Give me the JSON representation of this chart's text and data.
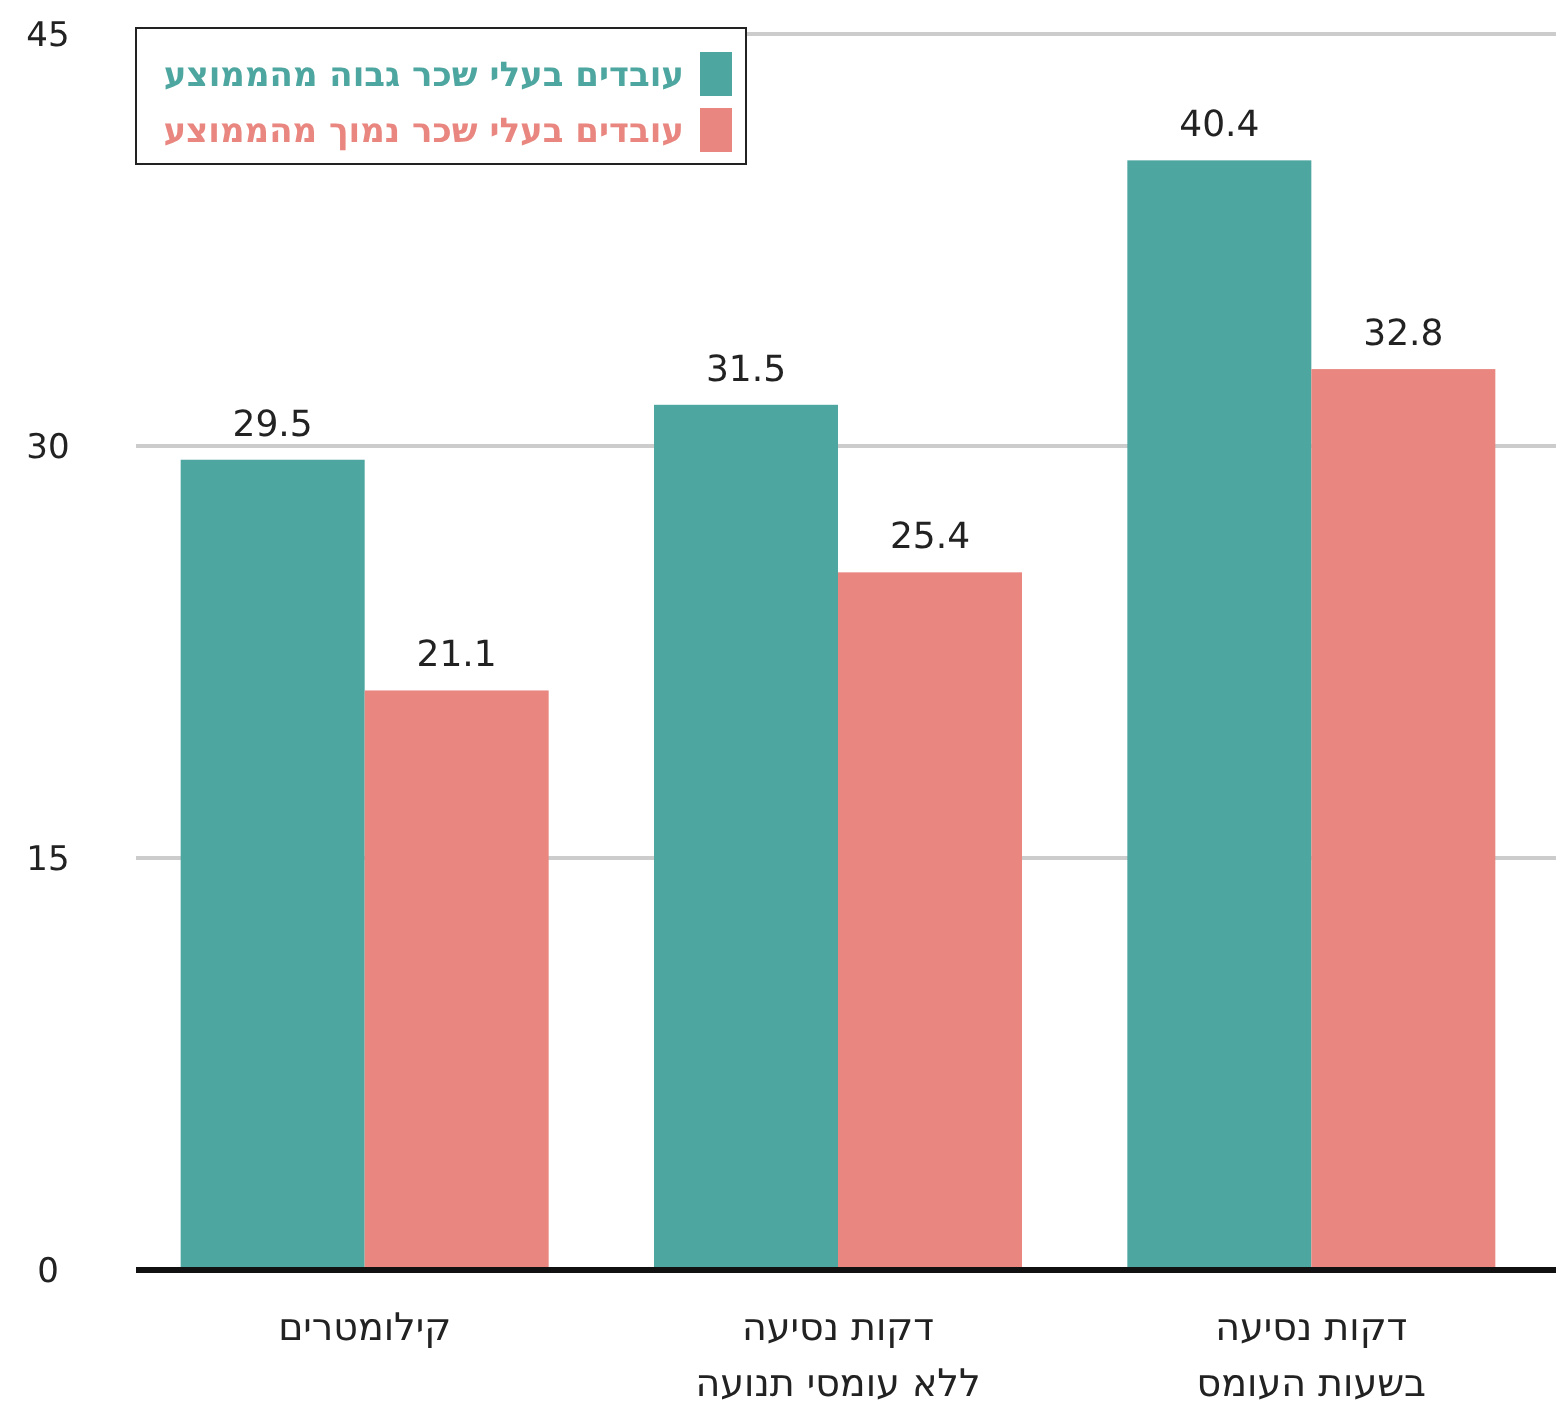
{
  "chart_data": {
    "type": "bar",
    "categories": [
      "קילומטרים",
      "דקות נסיעה\nללא עומסי תנועה",
      "דקות נסיעה\nבשעות העומס"
    ],
    "series": [
      {
        "name": "עובדים בעלי שכר גבוה מהממוצע",
        "color": "#4ea6a0",
        "values": [
          29.5,
          31.5,
          40.4
        ]
      },
      {
        "name": "עובדים בעלי שכר נמוך מהממוצע",
        "color": "#e8867f",
        "values": [
          21.1,
          25.4,
          32.8
        ]
      }
    ],
    "ylim": [
      0,
      45
    ],
    "yticks": [
      0,
      15,
      30,
      45
    ],
    "grid": "y",
    "legend": "top left",
    "data_labels": true
  }
}
